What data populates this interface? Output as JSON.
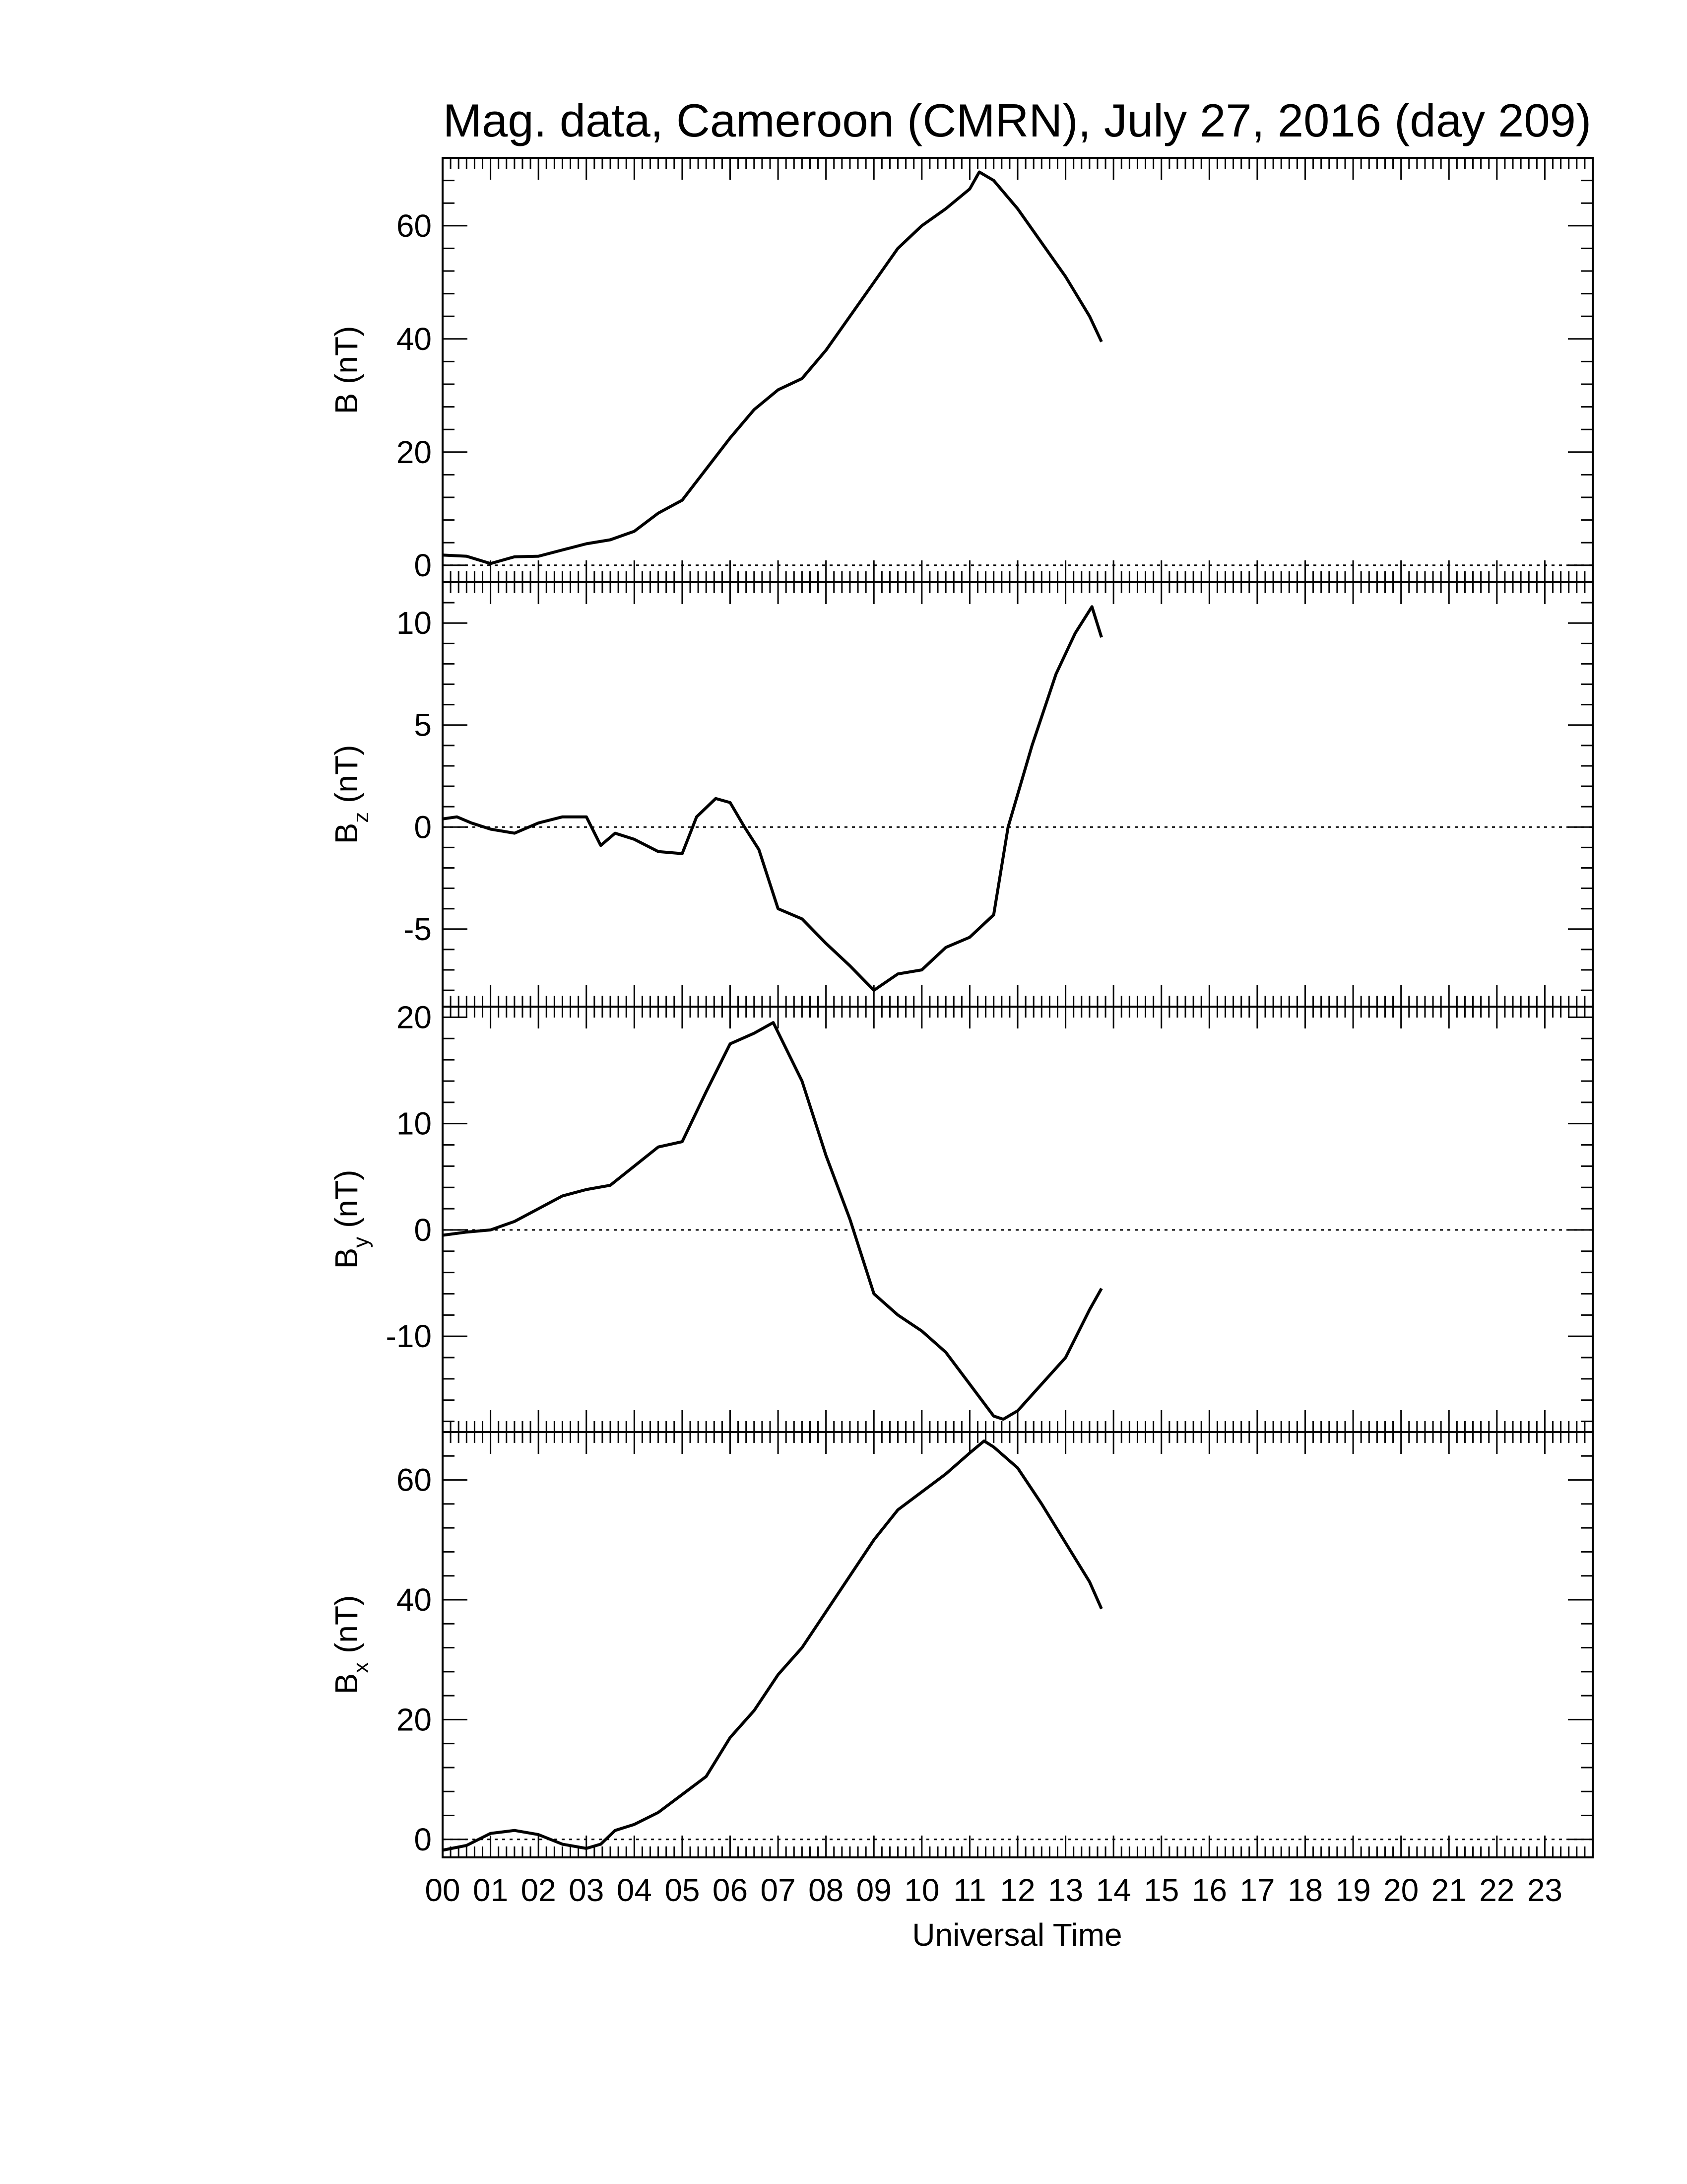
{
  "title": "Mag. data, Cameroon (CMRN), July 27, 2016 (day 209)",
  "xlabel": "Universal Time",
  "x_tick_labels": [
    "00",
    "01",
    "02",
    "03",
    "04",
    "05",
    "06",
    "07",
    "08",
    "09",
    "10",
    "11",
    "12",
    "13",
    "14",
    "15",
    "16",
    "17",
    "18",
    "19",
    "20",
    "21",
    "22",
    "23"
  ],
  "colors": {
    "line": "#000000",
    "frame": "#000000",
    "zero_line": "#000000",
    "background": "#ffffff"
  },
  "chart_data": [
    {
      "type": "line",
      "ylabel": "B (nT)",
      "ylabel_main": "B",
      "ylabel_sub": "",
      "ylabel_unit": " (nT)",
      "xlim": [
        0,
        24
      ],
      "ylim": [
        -3,
        72
      ],
      "yticks": [
        0,
        20,
        40,
        60
      ],
      "ytick_labels": [
        "0",
        "20",
        "40",
        "60"
      ],
      "zero_line": true,
      "x": [
        0,
        0.5,
        1.0,
        1.5,
        2.0,
        2.5,
        3.0,
        3.5,
        4.0,
        4.5,
        5.0,
        5.5,
        6.0,
        6.5,
        7.0,
        7.5,
        8.0,
        8.5,
        9.0,
        9.5,
        10.0,
        10.5,
        11.0,
        11.2,
        11.5,
        12.0,
        12.5,
        13.0,
        13.5,
        13.75
      ],
      "y": [
        1.8,
        1.6,
        0.3,
        1.5,
        1.6,
        2.7,
        3.8,
        4.5,
        6.0,
        9.2,
        11.5,
        17.0,
        22.5,
        27.5,
        31.0,
        33.0,
        38.0,
        44.0,
        50.0,
        56.0,
        60.0,
        63.0,
        66.5,
        69.5,
        68.0,
        63.0,
        57.0,
        51.0,
        44.0,
        39.5
      ]
    },
    {
      "type": "line",
      "ylabel": "Bz (nT)",
      "ylabel_main": "B",
      "ylabel_sub": "z",
      "ylabel_unit": " (nT)",
      "xlim": [
        0,
        24
      ],
      "ylim": [
        -8.8,
        12.0
      ],
      "yticks": [
        -5,
        0,
        5,
        10
      ],
      "ytick_labels": [
        "-5",
        "0",
        "5",
        "10"
      ],
      "zero_line": true,
      "x": [
        0,
        0.3,
        0.6,
        1.0,
        1.5,
        2.0,
        2.5,
        3.0,
        3.3,
        3.6,
        4.0,
        4.5,
        5.0,
        5.3,
        5.7,
        6.0,
        6.3,
        6.6,
        7.0,
        7.5,
        8.0,
        8.5,
        9.0,
        9.5,
        10.0,
        10.5,
        11.0,
        11.5,
        11.8,
        12.3,
        12.8,
        13.2,
        13.55,
        13.75
      ],
      "y": [
        0.4,
        0.5,
        0.2,
        -0.1,
        -0.3,
        0.2,
        0.5,
        0.5,
        -0.9,
        -0.3,
        -0.6,
        -1.2,
        -1.3,
        0.5,
        1.4,
        1.2,
        0.0,
        -1.1,
        -4.0,
        -4.5,
        -5.7,
        -6.8,
        -8.0,
        -7.2,
        -7.0,
        -5.9,
        -5.4,
        -4.3,
        0.0,
        4.0,
        7.5,
        9.5,
        10.8,
        9.3
      ]
    },
    {
      "type": "line",
      "ylabel": "By (nT)",
      "ylabel_main": "B",
      "ylabel_sub": "y",
      "ylabel_unit": " (nT)",
      "xlim": [
        0,
        24
      ],
      "ylim": [
        -19,
        21
      ],
      "yticks": [
        -10,
        0,
        10,
        20
      ],
      "ytick_labels": [
        "-10",
        "0",
        "10",
        "20"
      ],
      "zero_line": true,
      "x": [
        0,
        0.5,
        1.0,
        1.5,
        2.0,
        2.5,
        3.0,
        3.5,
        4.0,
        4.5,
        5.0,
        5.5,
        6.0,
        6.5,
        6.9,
        7.5,
        8.0,
        8.5,
        9.0,
        9.5,
        10.0,
        10.5,
        11.0,
        11.5,
        11.7,
        12.0,
        12.5,
        13.0,
        13.5,
        13.75
      ],
      "y": [
        -0.5,
        -0.2,
        0.0,
        0.8,
        2.0,
        3.2,
        3.8,
        4.2,
        6.0,
        7.8,
        8.3,
        13.0,
        17.5,
        18.5,
        19.5,
        14.0,
        7.0,
        1.0,
        -6.0,
        -8.0,
        -9.5,
        -11.5,
        -14.5,
        -17.5,
        -17.8,
        -17.0,
        -14.5,
        -12.0,
        -7.5,
        -5.5
      ]
    },
    {
      "type": "line",
      "ylabel": "Bx (nT)",
      "ylabel_main": "B",
      "ylabel_sub": "x",
      "ylabel_unit": " (nT)",
      "xlim": [
        0,
        24
      ],
      "ylim": [
        -3,
        68
      ],
      "yticks": [
        0,
        20,
        40,
        60
      ],
      "ytick_labels": [
        "0",
        "20",
        "40",
        "60"
      ],
      "zero_line": true,
      "x": [
        0,
        0.5,
        1.0,
        1.5,
        2.0,
        2.5,
        3.0,
        3.3,
        3.6,
        4.0,
        4.5,
        5.0,
        5.5,
        6.0,
        6.5,
        7.0,
        7.5,
        8.0,
        8.5,
        9.0,
        9.5,
        10.0,
        10.5,
        11.0,
        11.3,
        11.5,
        12.0,
        12.5,
        13.0,
        13.5,
        13.75
      ],
      "y": [
        -1.8,
        -1.0,
        1.0,
        1.5,
        0.8,
        -0.8,
        -1.5,
        -0.8,
        1.5,
        2.5,
        4.5,
        7.5,
        10.5,
        17.0,
        21.5,
        27.5,
        32.0,
        38.0,
        44.0,
        50.0,
        55.0,
        58.0,
        61.0,
        64.5,
        66.5,
        65.5,
        62.0,
        56.0,
        49.5,
        43.0,
        38.5
      ]
    }
  ]
}
